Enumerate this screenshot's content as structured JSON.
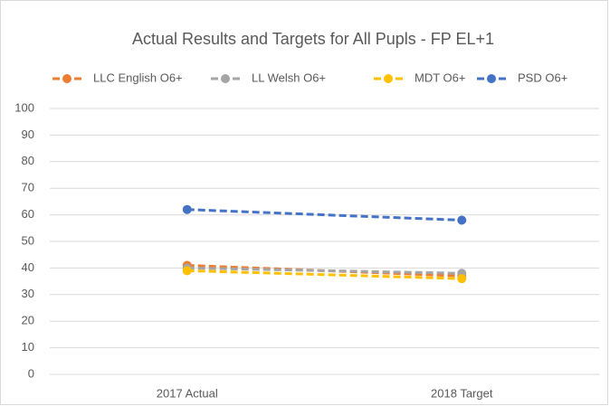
{
  "chart_data": {
    "type": "line",
    "title": "Actual Results and Targets for All Pupls - FP EL+1",
    "categories": [
      "2017 Actual",
      "2018 Target"
    ],
    "series": [
      {
        "name": "LLC English O6+",
        "color": "#ED7D31",
        "values": [
          41,
          37
        ]
      },
      {
        "name": "LL Welsh O6+",
        "color": "#A5A5A5",
        "values": [
          40,
          38
        ]
      },
      {
        "name": "MDT O6+",
        "color": "#FFC000",
        "values": [
          39,
          36
        ]
      },
      {
        "name": "PSD O6+",
        "color": "#4472C4",
        "values": [
          62,
          58
        ]
      }
    ],
    "ylim": [
      0,
      100
    ],
    "yticks": [
      0,
      10,
      20,
      30,
      40,
      50,
      60,
      70,
      80,
      90,
      100
    ],
    "grid": true,
    "legend": "top"
  }
}
